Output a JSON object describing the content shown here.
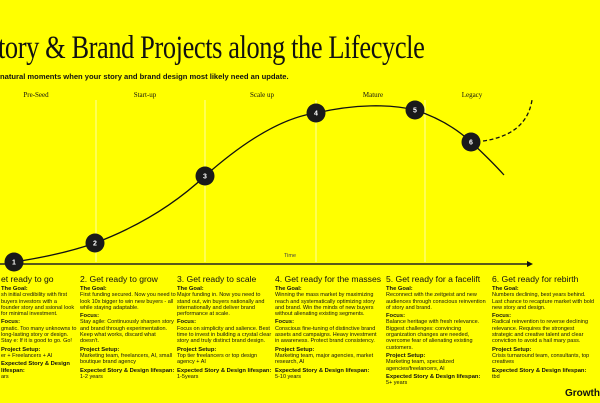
{
  "header": {
    "title": "tory & Brand Projects along the Lifecycle",
    "subtitle": "natural moments when your story and brand design most likely need an update."
  },
  "phases": [
    "Pre-Seed",
    "Start-up",
    "Scale up",
    "Mature",
    "Legacy"
  ],
  "axis_label": "Time",
  "milestones": [
    "1",
    "2",
    "3",
    "4",
    "5",
    "6"
  ],
  "colors": {
    "background": "#ffff00",
    "ink": "#111111"
  },
  "labels": {
    "goal": "The Goal:",
    "focus": "Focus:",
    "setup": "Project Setup:",
    "lifespan": "Expected Story & Design lifespan:"
  },
  "columns": [
    {
      "heading": "et ready to go",
      "goal": "sh initial credibility with first buyers investors with a founder story and ssional look for minimal investment.",
      "focus": "gmatic. Too many unknowns to long-lasting story or design. Stay e: If it is good to go. Go!",
      "setup": "er + Freelancers + AI",
      "lifespan": "ars"
    },
    {
      "heading": "2. Get ready to grow",
      "goal": "First funding secured. Now you need to look 10x bigger to win new buyers - all while staying adaptable.",
      "focus": "Stay agile: Continuously sharpen story and brand through experimentation. Keep what works, discard what doesn't.",
      "setup": "Marketing team, freelancers, AI, small boutique brand agency",
      "lifespan": "1-2 years"
    },
    {
      "heading": "3. Get ready to scale",
      "goal": "Major funding in. Now you need to stand out, win buyers nationally and internationally and deliver brand performance at scale.",
      "focus": "Focus on simplicity and salience. Best time to invest in building a crystal clear story and truly distinct brand design.",
      "setup": "Top tier freelancers or top design agency + AI",
      "lifespan": "1-5years"
    },
    {
      "heading": "4. Get ready for the masses",
      "goal": "Winning the mass market by maximizing reach and systematically optimizing story and brand. Win the minds of new buyers without alienating existing segments.",
      "focus": "Conscious fine-tuning of distinctive brand assets and campaigns. Heavy investment in awareness. Protect brand consistency.",
      "setup": "Marketing team, major agencies, market research, AI",
      "lifespan": "5-10 years"
    },
    {
      "heading": "5. Get ready for a facelift",
      "goal": "Reconnect with the zeitgeist and new audiences through conscious reinvention of story and brand.",
      "focus": "Balance heritage with fresh relevance. Biggest challenges: convincing organization changes are needed, overcome fear of alienating existing customers.",
      "setup": "Marketing team, specialized agencies/freelancers, AI",
      "lifespan": "5+ years"
    },
    {
      "heading": "6. Get ready for rebirth",
      "goal": "Numbers declining, best years behind. Last chance to recapture market with bold new story and design.",
      "focus": "Radical reinvention to reverse declining relevance. Requires the strongest strategic and creative talent and clear conviction to avoid a hail mary pass.",
      "setup": "Crisis turnaround team, consultants, top creatives",
      "lifespan": "tbd"
    }
  ],
  "logo": "Growth"
}
